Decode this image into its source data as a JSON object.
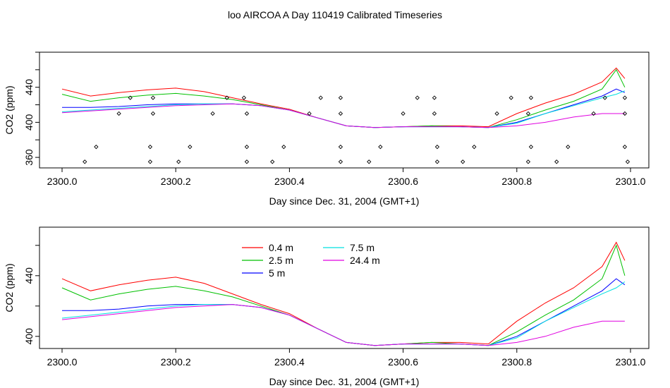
{
  "title": "loo AIRCOA A  Day 110419  Calibrated Timeseries",
  "colors": {
    "0.4 m": "#ff0000",
    "2.5 m": "#00c000",
    "5 m": "#0000ff",
    "7.5 m": "#00e0e0",
    "24.4 m": "#e000e0"
  },
  "chart_data": [
    {
      "type": "line",
      "panel": "top",
      "xlabel": "Day since Dec. 31, 2004 (GMT+1)",
      "ylabel": "CO2 (ppm)",
      "xlim": [
        2300.0,
        2301.0
      ],
      "ylim": [
        348,
        480
      ],
      "xticks": [
        "2300.0",
        "2300.2",
        "2300.4",
        "2300.6",
        "2300.8",
        "2301.0"
      ],
      "yticks": [
        "360",
        "400",
        "440"
      ],
      "series": [
        {
          "name": "0.4 m",
          "x": [
            2300.0,
            2300.05,
            2300.1,
            2300.15,
            2300.2,
            2300.25,
            2300.3,
            2300.35,
            2300.4,
            2300.45,
            2300.5,
            2300.55,
            2300.6,
            2300.65,
            2300.7,
            2300.75,
            2300.8,
            2300.85,
            2300.9,
            2300.95,
            2300.975,
            2300.99
          ],
          "values": [
            438,
            430,
            434,
            437,
            439,
            435,
            428,
            421,
            415,
            405,
            396,
            394,
            395,
            396,
            396,
            395,
            410,
            422,
            432,
            446,
            462,
            450
          ]
        },
        {
          "name": "2.5 m",
          "x": [
            2300.0,
            2300.05,
            2300.1,
            2300.15,
            2300.2,
            2300.25,
            2300.3,
            2300.35,
            2300.4,
            2300.45,
            2300.5,
            2300.55,
            2300.6,
            2300.65,
            2300.7,
            2300.75,
            2300.8,
            2300.85,
            2300.9,
            2300.95,
            2300.975,
            2300.99
          ],
          "values": [
            432,
            424,
            428,
            431,
            433,
            430,
            426,
            420,
            414,
            405,
            396,
            394,
            395,
            396,
            395,
            394,
            403,
            414,
            424,
            438,
            460,
            440
          ]
        },
        {
          "name": "5 m",
          "x": [
            2300.0,
            2300.05,
            2300.1,
            2300.15,
            2300.2,
            2300.25,
            2300.3,
            2300.35,
            2300.4,
            2300.45,
            2300.5,
            2300.55,
            2300.6,
            2300.65,
            2300.7,
            2300.75,
            2300.8,
            2300.85,
            2300.9,
            2300.95,
            2300.975,
            2300.99
          ],
          "values": [
            417,
            417,
            418,
            420,
            421,
            421,
            421,
            419,
            414,
            405,
            396,
            394,
            395,
            395,
            395,
            394,
            400,
            410,
            420,
            430,
            438,
            434
          ]
        },
        {
          "name": "7.5 m",
          "x": [
            2300.0,
            2300.05,
            2300.1,
            2300.15,
            2300.2,
            2300.25,
            2300.3,
            2300.35,
            2300.4,
            2300.45,
            2300.5,
            2300.55,
            2300.6,
            2300.65,
            2300.7,
            2300.75,
            2300.8,
            2300.85,
            2300.9,
            2300.95,
            2300.975,
            2300.99
          ],
          "values": [
            412,
            414,
            416,
            418,
            420,
            421,
            421,
            419,
            414,
            405,
            396,
            394,
            395,
            395,
            395,
            394,
            399,
            410,
            419,
            428,
            432,
            436
          ]
        },
        {
          "name": "24.4 m",
          "x": [
            2300.0,
            2300.05,
            2300.1,
            2300.15,
            2300.2,
            2300.25,
            2300.3,
            2300.35,
            2300.4,
            2300.45,
            2300.5,
            2300.55,
            2300.6,
            2300.65,
            2300.7,
            2300.75,
            2300.8,
            2300.85,
            2300.9,
            2300.95,
            2300.975,
            2300.99
          ],
          "values": [
            411,
            413,
            415,
            417,
            419,
            420,
            421,
            419,
            414,
            405,
            396,
            394,
            395,
            395,
            395,
            394,
            396,
            400,
            406,
            410,
            410,
            410
          ]
        }
      ],
      "points": [
        {
          "x": 2300.04,
          "y": 355
        },
        {
          "x": 2300.06,
          "y": 372
        },
        {
          "x": 2300.12,
          "y": 428
        },
        {
          "x": 2300.1,
          "y": 410
        },
        {
          "x": 2300.155,
          "y": 372
        },
        {
          "x": 2300.155,
          "y": 355
        },
        {
          "x": 2300.16,
          "y": 410
        },
        {
          "x": 2300.16,
          "y": 428
        },
        {
          "x": 2300.205,
          "y": 355
        },
        {
          "x": 2300.225,
          "y": 372
        },
        {
          "x": 2300.265,
          "y": 410
        },
        {
          "x": 2300.29,
          "y": 428
        },
        {
          "x": 2300.32,
          "y": 428
        },
        {
          "x": 2300.325,
          "y": 410
        },
        {
          "x": 2300.325,
          "y": 372
        },
        {
          "x": 2300.325,
          "y": 355
        },
        {
          "x": 2300.37,
          "y": 355
        },
        {
          "x": 2300.39,
          "y": 372
        },
        {
          "x": 2300.435,
          "y": 410
        },
        {
          "x": 2300.455,
          "y": 428
        },
        {
          "x": 2300.49,
          "y": 428
        },
        {
          "x": 2300.49,
          "y": 410
        },
        {
          "x": 2300.49,
          "y": 372
        },
        {
          "x": 2300.49,
          "y": 355
        },
        {
          "x": 2300.54,
          "y": 355
        },
        {
          "x": 2300.56,
          "y": 372
        },
        {
          "x": 2300.6,
          "y": 410
        },
        {
          "x": 2300.625,
          "y": 428
        },
        {
          "x": 2300.655,
          "y": 428
        },
        {
          "x": 2300.655,
          "y": 410
        },
        {
          "x": 2300.66,
          "y": 372
        },
        {
          "x": 2300.66,
          "y": 355
        },
        {
          "x": 2300.705,
          "y": 355
        },
        {
          "x": 2300.725,
          "y": 372
        },
        {
          "x": 2300.765,
          "y": 410
        },
        {
          "x": 2300.79,
          "y": 428
        },
        {
          "x": 2300.82,
          "y": 410
        },
        {
          "x": 2300.825,
          "y": 428
        },
        {
          "x": 2300.825,
          "y": 372
        },
        {
          "x": 2300.82,
          "y": 355
        },
        {
          "x": 2300.87,
          "y": 355
        },
        {
          "x": 2300.89,
          "y": 372
        },
        {
          "x": 2300.935,
          "y": 410
        },
        {
          "x": 2300.955,
          "y": 428
        },
        {
          "x": 2300.99,
          "y": 428
        },
        {
          "x": 2300.99,
          "y": 410
        },
        {
          "x": 2300.99,
          "y": 372
        },
        {
          "x": 2300.995,
          "y": 355
        }
      ]
    },
    {
      "type": "line",
      "panel": "bottom",
      "xlabel": "Day since Dec. 31, 2004 (GMT+1)",
      "ylabel": "CO2 (ppm)",
      "xlim": [
        2300.0,
        2301.0
      ],
      "ylim": [
        392,
        472
      ],
      "xticks": [
        "2300.0",
        "2300.2",
        "2300.4",
        "2300.6",
        "2300.8",
        "2301.0"
      ],
      "yticks": [
        "400",
        "440"
      ],
      "legend": [
        "0.4 m",
        "2.5 m",
        "5 m",
        "7.5 m",
        "24.4 m"
      ],
      "series": [
        {
          "name": "0.4 m",
          "x": [
            2300.0,
            2300.05,
            2300.1,
            2300.15,
            2300.2,
            2300.25,
            2300.3,
            2300.35,
            2300.4,
            2300.45,
            2300.5,
            2300.55,
            2300.6,
            2300.65,
            2300.7,
            2300.75,
            2300.8,
            2300.85,
            2300.9,
            2300.95,
            2300.975,
            2300.99
          ],
          "values": [
            438,
            430,
            434,
            437,
            439,
            435,
            428,
            421,
            415,
            405,
            396,
            394,
            395,
            396,
            396,
            395,
            410,
            422,
            432,
            446,
            462,
            450
          ]
        },
        {
          "name": "2.5 m",
          "x": [
            2300.0,
            2300.05,
            2300.1,
            2300.15,
            2300.2,
            2300.25,
            2300.3,
            2300.35,
            2300.4,
            2300.45,
            2300.5,
            2300.55,
            2300.6,
            2300.65,
            2300.7,
            2300.75,
            2300.8,
            2300.85,
            2300.9,
            2300.95,
            2300.975,
            2300.99
          ],
          "values": [
            432,
            424,
            428,
            431,
            433,
            430,
            426,
            420,
            414,
            405,
            396,
            394,
            395,
            396,
            395,
            394,
            403,
            414,
            424,
            438,
            460,
            440
          ]
        },
        {
          "name": "5 m",
          "x": [
            2300.0,
            2300.05,
            2300.1,
            2300.15,
            2300.2,
            2300.25,
            2300.3,
            2300.35,
            2300.4,
            2300.45,
            2300.5,
            2300.55,
            2300.6,
            2300.65,
            2300.7,
            2300.75,
            2300.8,
            2300.85,
            2300.9,
            2300.95,
            2300.975,
            2300.99
          ],
          "values": [
            417,
            417,
            418,
            420,
            421,
            421,
            421,
            419,
            414,
            405,
            396,
            394,
            395,
            395,
            395,
            394,
            400,
            410,
            420,
            430,
            438,
            434
          ]
        },
        {
          "name": "7.5 m",
          "x": [
            2300.0,
            2300.05,
            2300.1,
            2300.15,
            2300.2,
            2300.25,
            2300.3,
            2300.35,
            2300.4,
            2300.45,
            2300.5,
            2300.55,
            2300.6,
            2300.65,
            2300.7,
            2300.75,
            2300.8,
            2300.85,
            2300.9,
            2300.95,
            2300.975,
            2300.99
          ],
          "values": [
            412,
            414,
            416,
            418,
            420,
            421,
            421,
            419,
            414,
            405,
            396,
            394,
            395,
            395,
            395,
            394,
            399,
            410,
            419,
            428,
            432,
            436
          ]
        },
        {
          "name": "24.4 m",
          "x": [
            2300.0,
            2300.05,
            2300.1,
            2300.15,
            2300.2,
            2300.25,
            2300.3,
            2300.35,
            2300.4,
            2300.45,
            2300.5,
            2300.55,
            2300.6,
            2300.65,
            2300.7,
            2300.75,
            2300.8,
            2300.85,
            2300.9,
            2300.95,
            2300.975,
            2300.99
          ],
          "values": [
            411,
            413,
            415,
            417,
            419,
            420,
            421,
            419,
            414,
            405,
            396,
            394,
            395,
            395,
            395,
            394,
            396,
            400,
            406,
            410,
            410,
            410
          ]
        }
      ]
    }
  ]
}
